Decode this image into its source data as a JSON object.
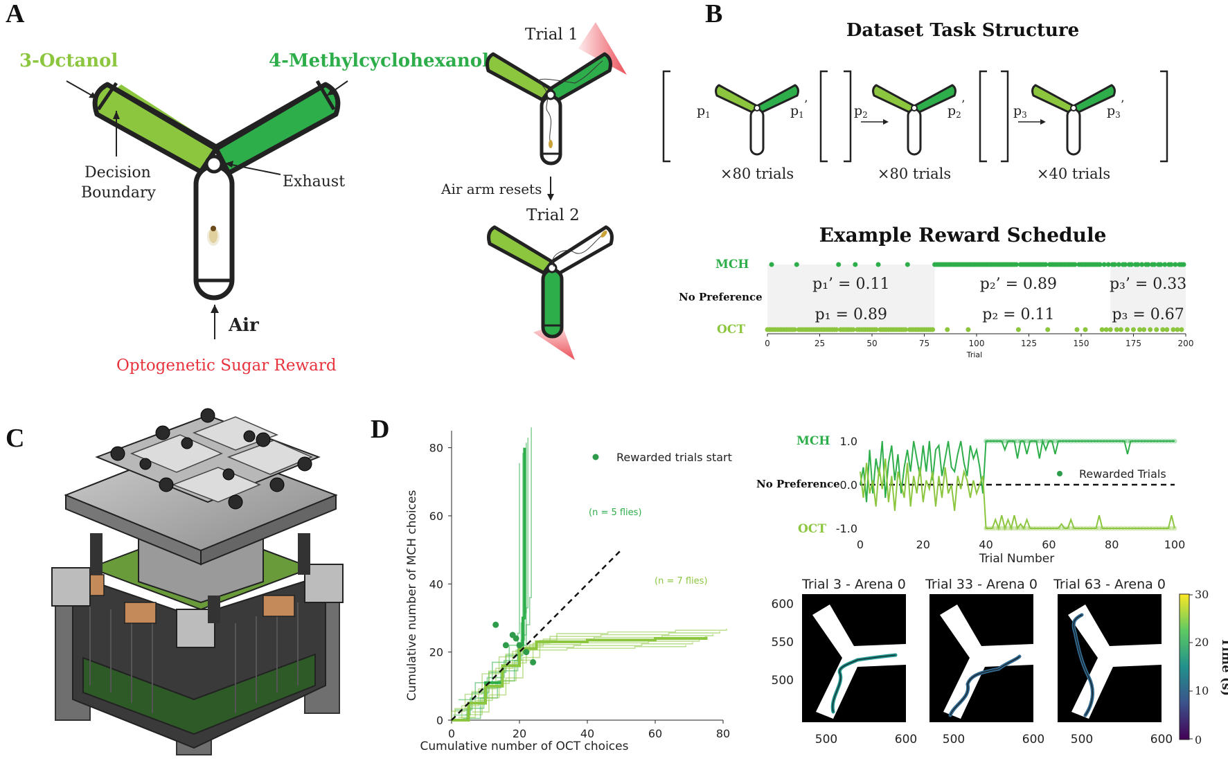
{
  "panel_labels": [
    "A",
    "B",
    "C",
    "D"
  ],
  "panel_a": {
    "odor_left": "3-Octanol",
    "odor_right": "4-Methylcyclohexanol",
    "decision_boundary": "Decision\nBoundary",
    "exhaust": "Exhaust",
    "air": "Air",
    "reward": "Optogenetic Sugar Reward",
    "trial1": "Trial 1",
    "trial2": "Trial 2",
    "air_reset": "Air arm resets",
    "colors": {
      "oct": "#8CC63F",
      "mch": "#2EAE4A",
      "reward": "#E8323C"
    }
  },
  "panel_b": {
    "title": "Dataset Task Structure",
    "blocks": [
      {
        "left": "p",
        "left_sub": "1",
        "right": "p",
        "right_sub": "1",
        "right_mark": "’",
        "trials": "×80 trials"
      },
      {
        "left": "p",
        "left_sub": "2",
        "right": "p",
        "right_sub": "2",
        "right_mark": "’",
        "trials": "×80 trials"
      },
      {
        "left": "p",
        "left_sub": "3",
        "right": "p",
        "right_sub": "3",
        "right_mark": "’",
        "trials": "×40 trials"
      }
    ],
    "schedule_title": "Example Reward Schedule",
    "mch_label": "MCH",
    "nopref_label": "No Preference",
    "oct_label": "OCT",
    "block_labels": [
      {
        "top": "p₁’ = 0.11",
        "bottom": "p₁ = 0.89"
      },
      {
        "top": "p₂’ = 0.89",
        "bottom": "p₂ = 0.11"
      },
      {
        "top": "p₃’ = 0.33",
        "bottom": "p₃ = 0.67"
      }
    ],
    "xlabel": "Trial",
    "xticks": [
      0,
      25,
      50,
      75,
      100,
      125,
      150,
      175,
      200
    ],
    "mch_rewards": [
      2,
      14,
      34,
      42,
      53,
      67,
      80,
      81,
      82,
      83,
      84,
      85,
      86,
      87,
      88,
      89,
      90,
      91,
      92,
      93,
      94,
      95,
      96,
      97,
      98,
      99,
      100,
      101,
      102,
      103,
      104,
      105,
      106,
      107,
      108,
      109,
      110,
      111,
      112,
      113,
      114,
      115,
      116,
      117,
      118,
      119,
      121,
      122,
      123,
      124,
      125,
      126,
      127,
      128,
      129,
      130,
      131,
      132,
      133,
      135,
      136,
      137,
      138,
      139,
      140,
      141,
      142,
      143,
      144,
      145,
      146,
      147,
      149,
      150,
      151,
      152,
      153,
      154,
      155,
      156,
      157,
      158,
      159,
      161,
      163,
      165,
      166,
      168,
      170,
      171,
      173,
      174,
      176,
      177,
      179,
      181,
      182,
      184,
      185,
      187,
      188,
      190,
      192,
      193,
      195,
      197,
      198,
      199
    ],
    "oct_rewards": [
      0,
      1,
      2,
      3,
      4,
      5,
      6,
      7,
      8,
      9,
      10,
      11,
      12,
      13,
      15,
      16,
      17,
      18,
      19,
      20,
      21,
      22,
      23,
      24,
      25,
      26,
      27,
      28,
      29,
      30,
      31,
      32,
      33,
      35,
      36,
      37,
      38,
      39,
      40,
      41,
      43,
      44,
      45,
      46,
      47,
      48,
      49,
      50,
      51,
      52,
      54,
      55,
      56,
      57,
      58,
      59,
      60,
      61,
      62,
      63,
      64,
      65,
      66,
      68,
      69,
      70,
      71,
      72,
      73,
      74,
      75,
      76,
      77,
      78,
      79,
      86,
      96,
      120,
      134,
      148,
      152,
      160,
      162,
      164,
      167,
      169,
      172,
      175,
      178,
      180,
      183,
      186,
      189,
      191,
      194,
      196,
      198
    ]
  },
  "panel_d_cumulative": {
    "xlabel": "Cumulative number of OCT choices",
    "ylabel": "Cumulative number of MCH choices",
    "legend": "Rewarded trials start",
    "n_mch": "(n = 5 flies)",
    "n_oct": "(n = 7 flies)",
    "xticks": [
      0,
      20,
      40,
      60,
      80
    ],
    "yticks": [
      0,
      20,
      40,
      60,
      80
    ],
    "xlim": [
      0,
      80
    ],
    "ylim": [
      0,
      85
    ],
    "mean_mch": {
      "x": [
        0,
        5,
        10,
        15,
        20,
        21,
        21.5,
        21.5,
        21.5
      ],
      "y": [
        0,
        5,
        11,
        16,
        22,
        30,
        45,
        65,
        80
      ]
    },
    "mean_oct": {
      "x": [
        0,
        5,
        10,
        15,
        20,
        25,
        40,
        60,
        75
      ],
      "y": [
        0,
        5,
        10,
        16,
        21,
        23,
        23.5,
        24,
        24.5
      ]
    },
    "start_points": [
      [
        13,
        28
      ],
      [
        18,
        25
      ],
      [
        20,
        22
      ],
      [
        22,
        20
      ],
      [
        24,
        17
      ],
      [
        16,
        22
      ],
      [
        19,
        24
      ]
    ]
  },
  "panel_d_pref": {
    "ylabels": [
      "MCH",
      "No Preference",
      "OCT"
    ],
    "yticks": [
      "1.0",
      "0.0",
      "-1.0"
    ],
    "xlabel": "Trial Number",
    "xticks": [
      0,
      20,
      40,
      60,
      80,
      100
    ],
    "legend": "Rewarded Trials",
    "mch_line": [
      0,
      0.4,
      -0.4,
      0.8,
      -0.2,
      0.6,
      0.2,
      1,
      -0.3,
      0.5,
      0.9,
      0.1,
      0.7,
      -0.2,
      0.4,
      0.8,
      0.3,
      1,
      0.6,
      0.2,
      0.9,
      0.3,
      1,
      0.1,
      0.8,
      0.9,
      0.2,
      0.6,
      1,
      0.4,
      0.3,
      0.7,
      1,
      0.5,
      0.2,
      0.9,
      0.6,
      0.8,
      0.4,
      -0.2,
      1,
      1,
      1,
      1,
      1,
      1,
      0.8,
      1,
      1,
      1,
      0.6,
      1,
      1,
      0.7,
      1,
      1,
      1,
      0.6,
      1,
      0.8,
      1,
      1,
      0.7,
      1,
      1,
      1,
      1,
      1,
      1,
      1,
      1,
      1,
      1,
      1,
      1,
      1,
      1,
      1,
      1,
      1,
      1,
      1,
      1,
      1,
      1,
      0.7,
      1,
      1,
      1,
      1,
      1,
      1,
      1,
      1,
      1,
      1,
      1,
      1,
      1,
      1,
      1
    ],
    "oct_line": [
      0.3,
      -0.3,
      0.5,
      -0.2,
      0.1,
      -0.5,
      0.4,
      -0.1,
      0.6,
      -0.4,
      0.2,
      -0.6,
      0.3,
      0,
      -0.3,
      0.5,
      -0.5,
      0.2,
      -0.2,
      0.4,
      -0.4,
      0.1,
      -0.1,
      0.3,
      -0.5,
      0.2,
      -0.3,
      0.4,
      -0.2,
      0,
      -0.6,
      0.2,
      -0.1,
      0.3,
      0.1,
      -0.3,
      0.1,
      -0.2,
      0,
      0.2,
      -1,
      -1,
      -1,
      -0.8,
      -1,
      -0.7,
      -1,
      -0.8,
      -1,
      -0.7,
      -1,
      -0.9,
      -1,
      -0.8,
      -1,
      -1,
      -1,
      -1,
      -1,
      -1,
      -1,
      -1,
      -1,
      -1,
      -0.9,
      -1,
      -1,
      -0.8,
      -1,
      -1,
      -1,
      -1,
      -1,
      -1,
      -1,
      -1,
      -0.7,
      -1,
      -1,
      -1,
      -1,
      -1,
      -1,
      -1,
      -1,
      -1,
      -1,
      -1,
      -1,
      -1,
      -1,
      -1,
      -1,
      -1,
      -1,
      -1,
      -1,
      -1,
      -1,
      -0.7,
      -1
    ]
  },
  "panel_d_traj": {
    "titles": [
      "Trial 3 - Arena 0",
      "Trial 33 - Arena 0",
      "Trial 63 - Arena 0"
    ],
    "yticks": [
      "600",
      "550",
      "500"
    ],
    "xticks": [
      "500",
      "600"
    ],
    "colorbar_label": "Time (s)",
    "colorbar_ticks": [
      "30",
      "20",
      "10",
      "0"
    ]
  }
}
